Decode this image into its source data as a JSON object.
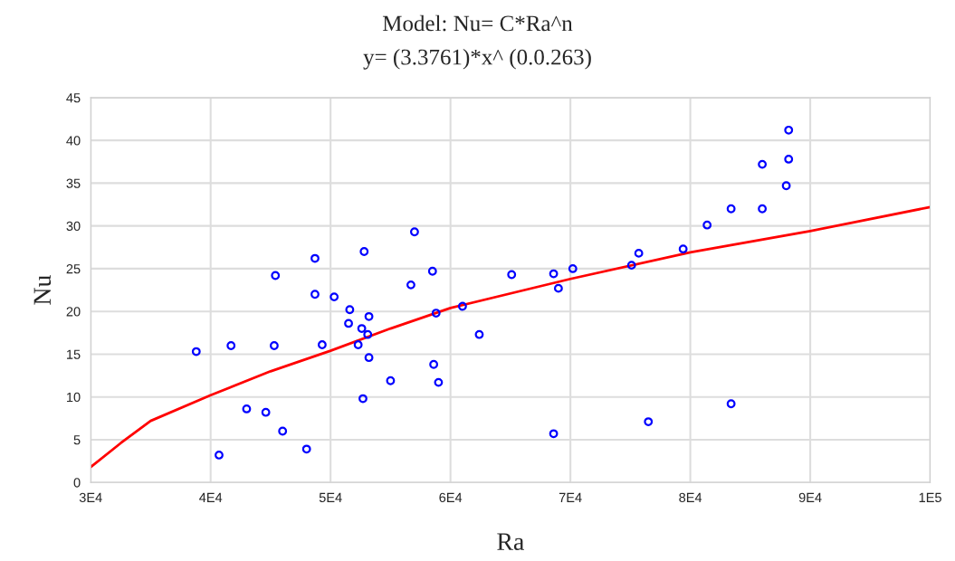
{
  "chart_data": {
    "type": "scatter",
    "title": "Model: Nu= C*Ra^n",
    "subtitle": "y= (3.3761)*x^ (0.0.263)",
    "xlabel": "Ra",
    "ylabel": "Nu",
    "xlim": [
      30000,
      100000
    ],
    "xticks": [
      {
        "value": 30000,
        "label": "3E4"
      },
      {
        "value": 40000,
        "label": "4E4"
      },
      {
        "value": 50000,
        "label": "5E4"
      },
      {
        "value": 60000,
        "label": "6E4"
      },
      {
        "value": 70000,
        "label": "7E4"
      },
      {
        "value": 80000,
        "label": "8E4"
      },
      {
        "value": 90000,
        "label": "9E4"
      },
      {
        "value": 100000,
        "label": "1E5"
      }
    ],
    "ylim": [
      0,
      45
    ],
    "yticks": [
      0,
      5,
      10,
      15,
      20,
      25,
      30,
      35,
      40,
      45
    ],
    "grid": true,
    "marker": "circle",
    "series": [
      {
        "color": "#0000ff",
        "x": [
          38800,
          40700,
          41700,
          43000,
          44600,
          45300,
          45400,
          46000,
          48000,
          48700,
          48700,
          49300,
          50300,
          51500,
          51600,
          52300,
          52600,
          52700,
          52800,
          53100,
          53200,
          53200,
          55000,
          56700,
          57000,
          58500,
          58600,
          58800,
          59000,
          61000,
          62400,
          65100,
          68600,
          68600,
          69000,
          70200,
          75100,
          75700,
          76500,
          79400,
          81400,
          83400,
          83400,
          86000,
          86000,
          88000,
          88200,
          88200
        ],
        "values": [
          15.3,
          3.2,
          16.0,
          8.6,
          8.2,
          16.0,
          24.2,
          6.0,
          3.9,
          26.2,
          22.0,
          16.1,
          21.7,
          18.6,
          20.2,
          16.1,
          18.0,
          9.8,
          27.0,
          17.3,
          19.4,
          14.6,
          11.9,
          23.1,
          29.3,
          24.7,
          13.8,
          19.8,
          11.7,
          20.6,
          17.3,
          24.3,
          24.4,
          5.7,
          22.7,
          25.0,
          25.4,
          26.8,
          7.1,
          27.3,
          30.1,
          32.0,
          9.2,
          37.2,
          32.0,
          34.7,
          37.8,
          41.2
        ]
      },
      {
        "type": "line",
        "color": "#ff0000",
        "marker": "none",
        "x": [
          30000,
          32500,
          35000,
          40000,
          45000,
          50000,
          55000,
          60000,
          70000,
          80000,
          90000,
          100000
        ],
        "values": [
          1.8,
          4.6,
          7.2,
          10.2,
          13.0,
          15.4,
          18.0,
          20.4,
          23.8,
          26.9,
          29.4,
          32.2
        ]
      }
    ]
  }
}
